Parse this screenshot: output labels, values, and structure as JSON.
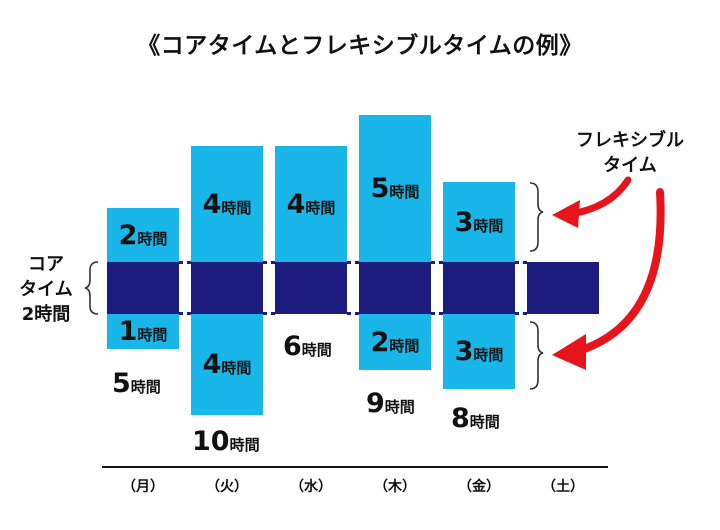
{
  "title": "《コアタイムとフレキシブルタイムの例》",
  "core_label": [
    "コア",
    "タイム",
    "2時間"
  ],
  "flexible_label": [
    "フレキシブル",
    "タイム"
  ],
  "unit": "時間",
  "colors": {
    "flexible": "#19b6ea",
    "core": "#1c1d7e",
    "arrow": "#e5151b"
  },
  "days": [
    {
      "label": "（月）",
      "before": "2",
      "after": "1",
      "total": "5"
    },
    {
      "label": "（火）",
      "before": "4",
      "after": "4",
      "total": "10"
    },
    {
      "label": "（水）",
      "before": "4",
      "after": "",
      "total": "6"
    },
    {
      "label": "（木）",
      "before": "5",
      "after": "2",
      "total": "9"
    },
    {
      "label": "（金）",
      "before": "3",
      "after": "3",
      "total": "8"
    },
    {
      "label": "（土）",
      "before": "",
      "after": "",
      "total": ""
    }
  ]
}
